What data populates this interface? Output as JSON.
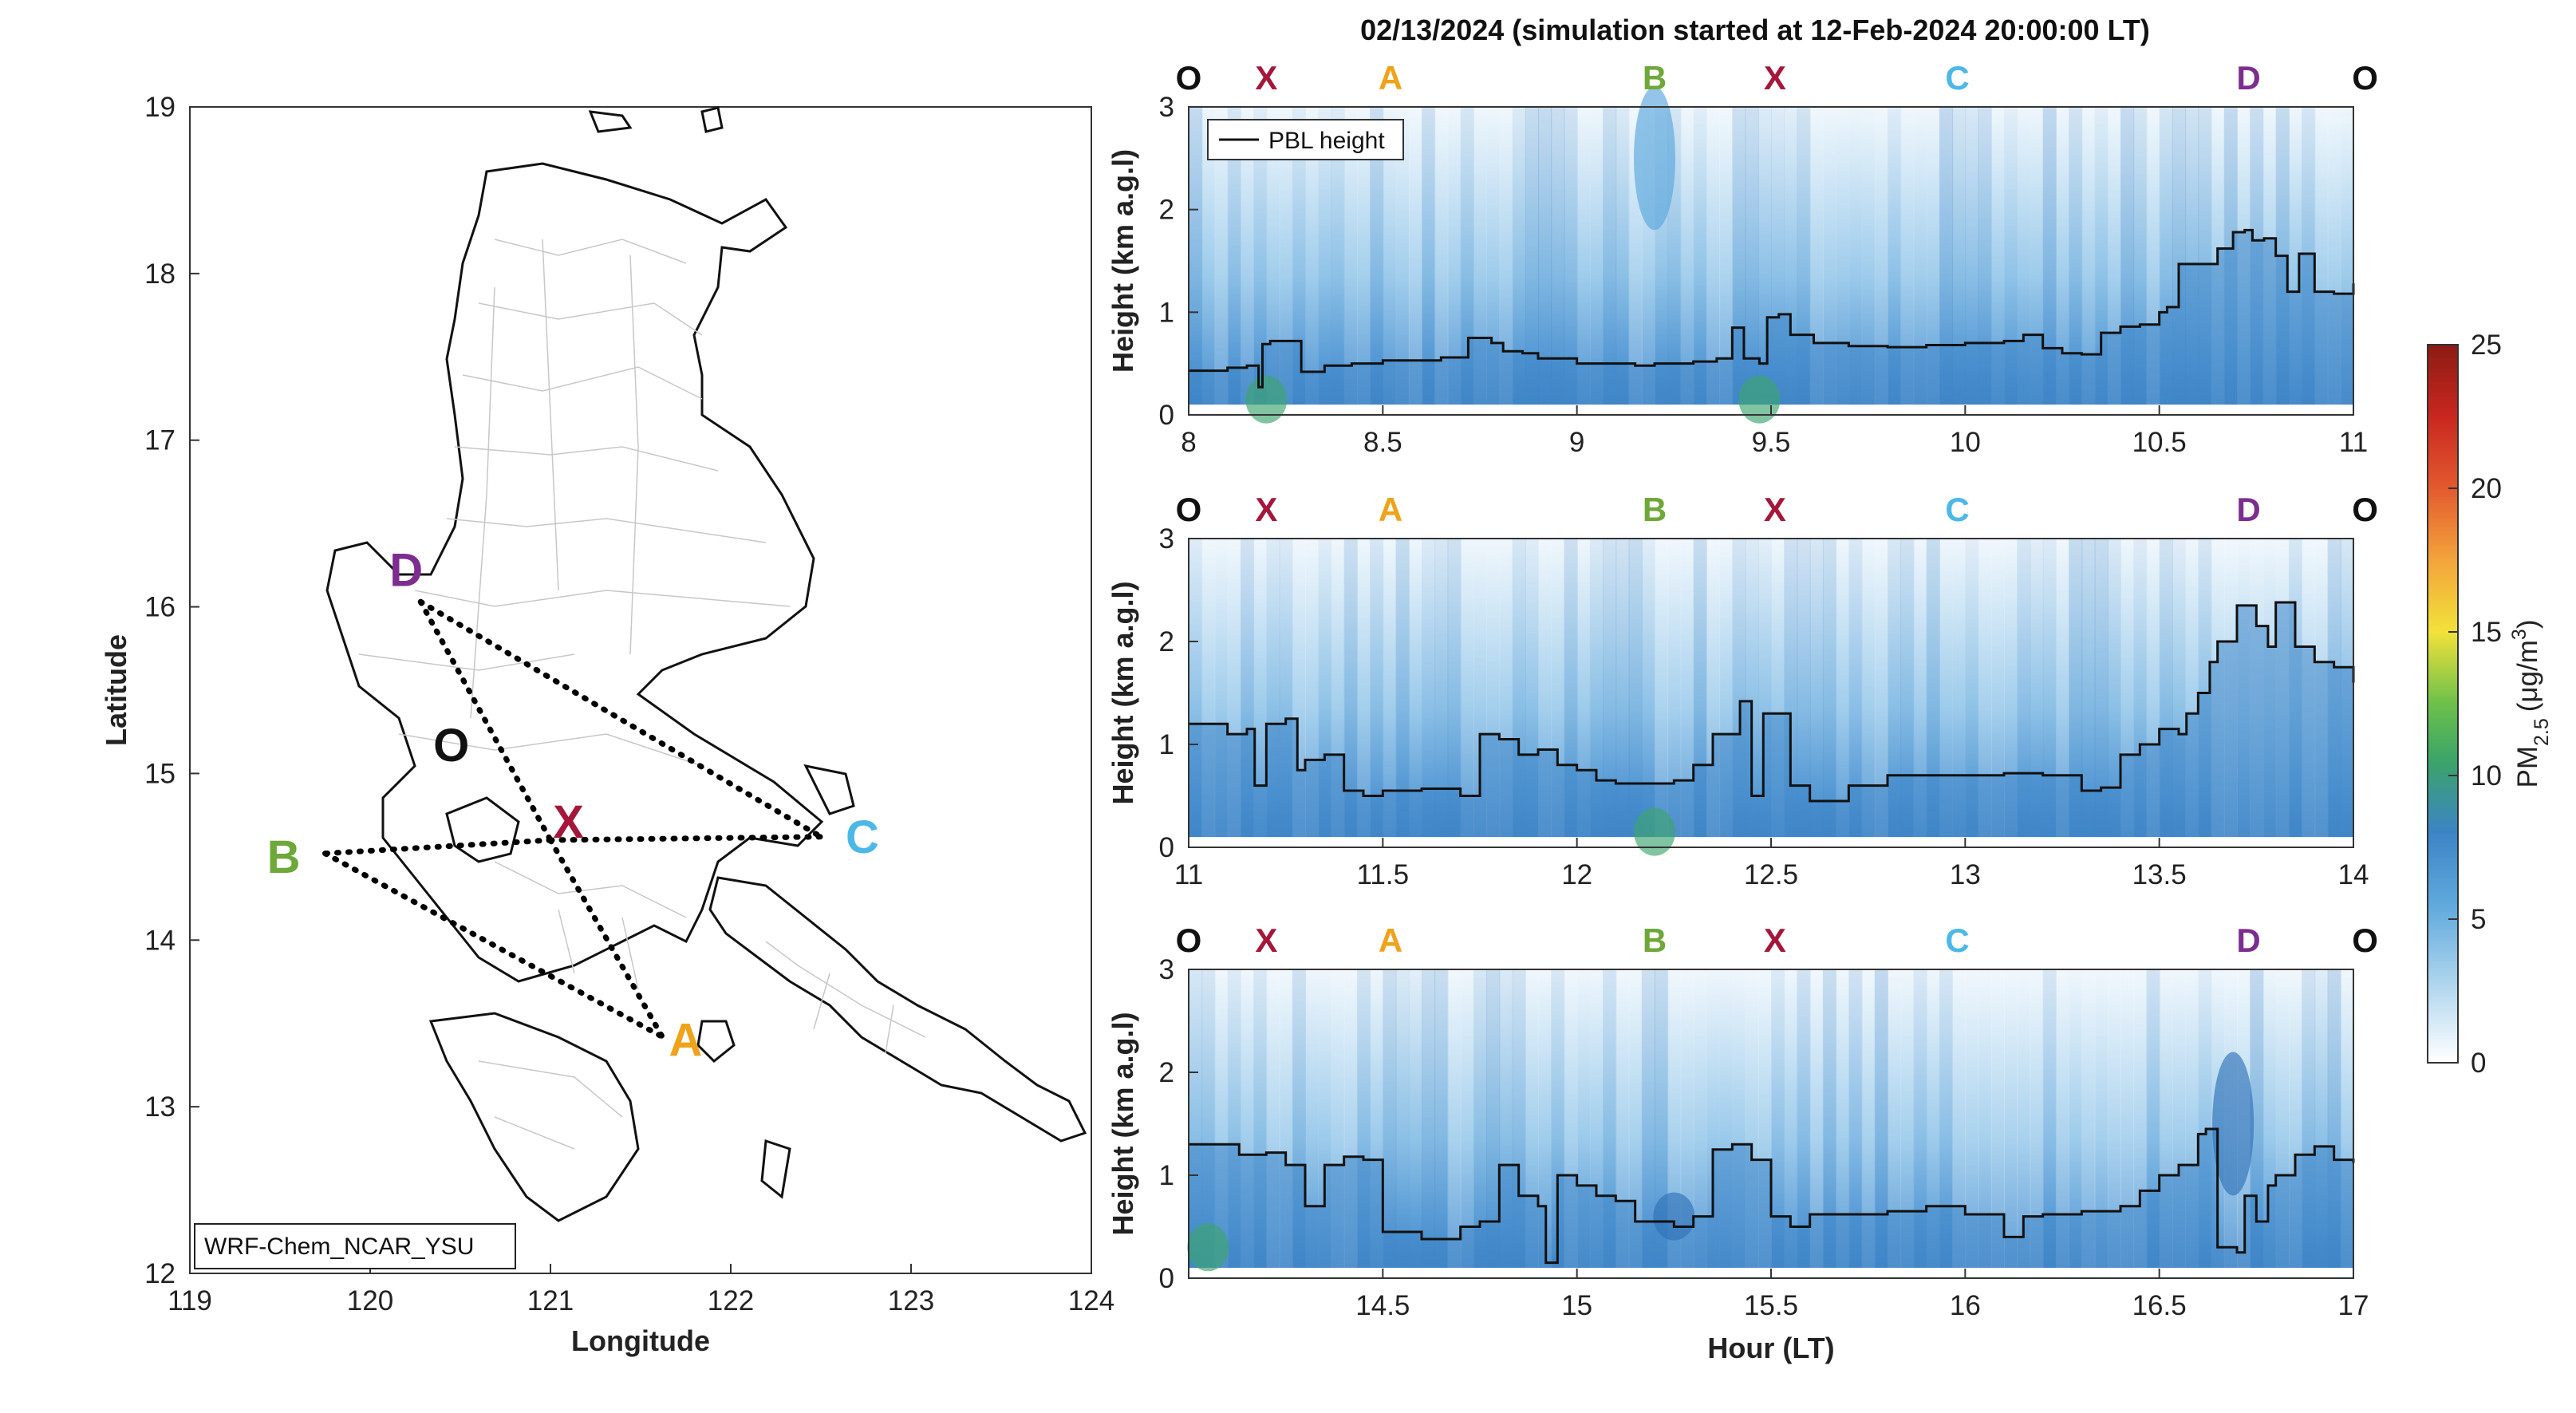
{
  "figure_title": "02/13/2024 (simulation started at 12-Feb-2024 20:00:00 LT)",
  "colors": {
    "O": "#111111",
    "X": "#a5173a",
    "A": "#efa31a",
    "B": "#6ea839",
    "C": "#4cb8e8",
    "D": "#7d2d8f",
    "pbl": "#111111"
  },
  "chart_data": [
    {
      "type": "map",
      "title": "",
      "model_label": "WRF-Chem_NCAR_YSU",
      "xlabel": "Longitude",
      "ylabel": "Latitude",
      "xlim": [
        119,
        124
      ],
      "ylim": [
        12,
        19
      ],
      "xticks": [
        119,
        120,
        121,
        122,
        123,
        124
      ],
      "yticks": [
        12,
        13,
        14,
        15,
        16,
        17,
        18,
        19
      ],
      "waypoints": [
        {
          "name": "D",
          "lon": 120.28,
          "lat": 16.03,
          "label_lon": 120.2,
          "label_lat": 16.22
        },
        {
          "name": "O",
          "lon": 120.6,
          "lat": 15.05,
          "label_lon": 120.45,
          "label_lat": 15.17
        },
        {
          "name": "X",
          "lon": 121.0,
          "lat": 14.6,
          "label_lon": 121.1,
          "label_lat": 14.71
        },
        {
          "name": "B",
          "lon": 119.75,
          "lat": 14.52,
          "label_lon": 119.52,
          "label_lat": 14.5
        },
        {
          "name": "C",
          "lon": 122.5,
          "lat": 14.62,
          "label_lon": 122.73,
          "label_lat": 14.62
        },
        {
          "name": "A",
          "lon": 121.62,
          "lat": 13.42,
          "label_lon": 121.75,
          "label_lat": 13.4
        }
      ],
      "flight_legs": [
        [
          "D",
          "X"
        ],
        [
          "D",
          "C"
        ],
        [
          "X",
          "C"
        ],
        [
          "X",
          "B"
        ],
        [
          "B",
          "A"
        ],
        [
          "X",
          "A"
        ]
      ]
    },
    {
      "type": "heatmap",
      "title": "02/13/2024 (simulation started at 12-Feb-2024 20:00:00 LT)",
      "xlabel": "",
      "ylabel": "Height (km a.g.l)",
      "xlim": [
        8,
        11
      ],
      "ylim": [
        0,
        3
      ],
      "xticks": [
        8,
        8.5,
        9,
        9.5,
        10,
        10.5,
        11
      ],
      "yticks": [
        0,
        1,
        2,
        3
      ],
      "legend": "PBL height",
      "legend_position": "top-left",
      "waypoint_labels": [
        {
          "name": "O",
          "x": 8.0
        },
        {
          "name": "X",
          "x": 8.2
        },
        {
          "name": "A",
          "x": 8.52
        },
        {
          "name": "B",
          "x": 9.2
        },
        {
          "name": "X",
          "x": 9.51
        },
        {
          "name": "C",
          "x": 9.98
        },
        {
          "name": "D",
          "x": 10.73
        },
        {
          "name": "O",
          "x": 11.03
        }
      ],
      "series": [
        {
          "name": "PBL height",
          "x": [
            8,
            8.1,
            8.15,
            8.18,
            8.19,
            8.21,
            8.27,
            8.29,
            8.35,
            8.42,
            8.5,
            8.65,
            8.72,
            8.78,
            8.81,
            8.86,
            8.9,
            9.0,
            9.08,
            9.15,
            9.2,
            9.3,
            9.36,
            9.4,
            9.43,
            9.47,
            9.49,
            9.52,
            9.55,
            9.61,
            9.7,
            9.8,
            9.9,
            10.0,
            10.1,
            10.15,
            10.2,
            10.25,
            10.3,
            10.35,
            10.4,
            10.45,
            10.5,
            10.52,
            10.55,
            10.6,
            10.65,
            10.69,
            10.72,
            10.74,
            10.77,
            10.8,
            10.83,
            10.86,
            10.9,
            10.95,
            11.0
          ],
          "y": [
            0.43,
            0.46,
            0.48,
            0.27,
            0.69,
            0.72,
            0.72,
            0.42,
            0.48,
            0.5,
            0.53,
            0.56,
            0.75,
            0.7,
            0.62,
            0.6,
            0.55,
            0.5,
            0.5,
            0.48,
            0.5,
            0.52,
            0.55,
            0.85,
            0.55,
            0.5,
            0.95,
            0.98,
            0.78,
            0.7,
            0.67,
            0.66,
            0.68,
            0.7,
            0.72,
            0.78,
            0.65,
            0.6,
            0.59,
            0.8,
            0.86,
            0.88,
            1.0,
            1.05,
            1.47,
            1.47,
            1.62,
            1.78,
            1.8,
            1.7,
            1.72,
            1.55,
            1.2,
            1.57,
            1.2,
            1.18,
            1.28
          ]
        }
      ],
      "pm25_hotspots": [
        {
          "x": 8.2,
          "y": 0.15,
          "value": 10
        },
        {
          "x": 9.2,
          "y": 2.5,
          "value": 6
        },
        {
          "x": 9.47,
          "y": 0.15,
          "value": 9
        }
      ]
    },
    {
      "type": "heatmap",
      "title": "",
      "xlabel": "",
      "ylabel": "Height (km a.g.l)",
      "xlim": [
        11,
        14
      ],
      "ylim": [
        0,
        3
      ],
      "xticks": [
        11,
        11.5,
        12,
        12.5,
        13,
        13.5,
        14
      ],
      "yticks": [
        0,
        1,
        2,
        3
      ],
      "waypoint_labels": [
        {
          "name": "O",
          "x": 11.0
        },
        {
          "name": "X",
          "x": 11.2
        },
        {
          "name": "A",
          "x": 11.52
        },
        {
          "name": "B",
          "x": 12.2
        },
        {
          "name": "X",
          "x": 12.51
        },
        {
          "name": "C",
          "x": 12.98
        },
        {
          "name": "D",
          "x": 13.73
        },
        {
          "name": "O",
          "x": 14.03
        }
      ],
      "series": [
        {
          "name": "PBL height",
          "x": [
            11,
            11.05,
            11.1,
            11.15,
            11.17,
            11.2,
            11.25,
            11.28,
            11.3,
            11.35,
            11.4,
            11.45,
            11.5,
            11.6,
            11.7,
            11.75,
            11.8,
            11.85,
            11.9,
            11.95,
            12.0,
            12.05,
            12.1,
            12.15,
            12.25,
            12.3,
            12.35,
            12.42,
            12.45,
            12.48,
            12.5,
            12.55,
            12.6,
            12.7,
            12.8,
            12.9,
            13.0,
            13.1,
            13.2,
            13.3,
            13.35,
            13.4,
            13.45,
            13.5,
            13.55,
            13.57,
            13.6,
            13.63,
            13.65,
            13.7,
            13.75,
            13.78,
            13.8,
            13.85,
            13.9,
            13.95,
            14.0
          ],
          "y": [
            1.2,
            1.2,
            1.1,
            1.15,
            0.6,
            1.2,
            1.25,
            0.75,
            0.85,
            0.9,
            0.55,
            0.5,
            0.55,
            0.57,
            0.5,
            1.1,
            1.05,
            0.9,
            0.95,
            0.8,
            0.75,
            0.65,
            0.62,
            0.62,
            0.65,
            0.8,
            1.1,
            1.42,
            0.5,
            1.3,
            1.3,
            0.6,
            0.45,
            0.6,
            0.7,
            0.7,
            0.7,
            0.72,
            0.7,
            0.55,
            0.58,
            0.9,
            1.0,
            1.15,
            1.1,
            1.3,
            1.5,
            1.8,
            2.0,
            2.35,
            2.15,
            1.95,
            2.38,
            1.95,
            1.8,
            1.75,
            1.6
          ]
        }
      ],
      "pm25_hotspots": [
        {
          "x": 12.2,
          "y": 0.15,
          "value": 9
        }
      ]
    },
    {
      "type": "heatmap",
      "title": "",
      "xlabel": "Hour (LT)",
      "ylabel": "Height (km a.g.l)",
      "xlim": [
        14,
        17
      ],
      "ylim": [
        0,
        3
      ],
      "xticks": [
        14.5,
        15,
        15.5,
        16,
        16.5,
        17
      ],
      "yticks": [
        0,
        1,
        2,
        3
      ],
      "waypoint_labels": [
        {
          "name": "O",
          "x": 14.0
        },
        {
          "name": "X",
          "x": 14.2
        },
        {
          "name": "A",
          "x": 14.52
        },
        {
          "name": "B",
          "x": 15.2
        },
        {
          "name": "X",
          "x": 15.51
        },
        {
          "name": "C",
          "x": 15.98
        },
        {
          "name": "D",
          "x": 16.73
        },
        {
          "name": "O",
          "x": 17.03
        }
      ],
      "series": [
        {
          "name": "PBL height",
          "x": [
            14,
            14.1,
            14.13,
            14.2,
            14.25,
            14.3,
            14.35,
            14.4,
            14.45,
            14.5,
            14.6,
            14.7,
            14.75,
            14.8,
            14.85,
            14.9,
            14.92,
            14.95,
            15.0,
            15.05,
            15.1,
            15.15,
            15.25,
            15.3,
            15.35,
            15.4,
            15.45,
            15.5,
            15.55,
            15.6,
            15.7,
            15.8,
            15.9,
            16.0,
            16.1,
            16.15,
            16.2,
            16.3,
            16.4,
            16.45,
            16.5,
            16.55,
            16.6,
            16.62,
            16.65,
            16.7,
            16.72,
            16.75,
            16.78,
            16.8,
            16.85,
            16.9,
            16.95,
            17.0
          ],
          "y": [
            1.3,
            1.3,
            1.2,
            1.22,
            1.1,
            0.7,
            1.1,
            1.18,
            1.15,
            0.45,
            0.38,
            0.5,
            0.55,
            1.1,
            0.8,
            0.7,
            0.15,
            1.0,
            0.9,
            0.8,
            0.75,
            0.55,
            0.5,
            0.6,
            1.25,
            1.3,
            1.15,
            0.6,
            0.5,
            0.62,
            0.62,
            0.65,
            0.7,
            0.62,
            0.4,
            0.6,
            0.62,
            0.65,
            0.7,
            0.85,
            1.0,
            1.1,
            1.4,
            1.45,
            0.3,
            0.25,
            0.8,
            0.55,
            0.9,
            1.0,
            1.2,
            1.28,
            1.15,
            1.12
          ]
        }
      ],
      "pm25_hotspots": [
        {
          "x": 14.05,
          "y": 0.3,
          "value": 10
        },
        {
          "x": 15.25,
          "y": 0.6,
          "value": 8
        },
        {
          "x": 16.69,
          "y": 1.5,
          "value": 7
        }
      ]
    },
    {
      "type": "colorbar",
      "label": "PM2.5 (μg/m3)",
      "label_main": "PM",
      "label_sub": "2.5",
      "label_units": "(μg/m",
      "label_sup": "3",
      "label_close": ")",
      "range": [
        0,
        25
      ],
      "ticks": [
        0,
        5,
        10,
        15,
        20,
        25
      ]
    }
  ]
}
